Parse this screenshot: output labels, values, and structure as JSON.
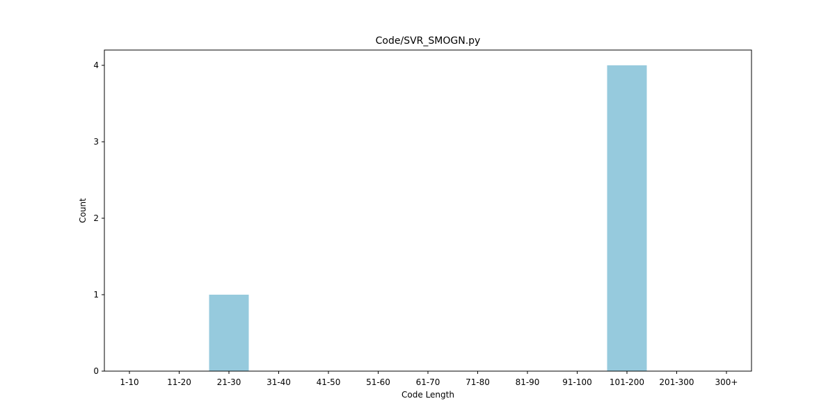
{
  "chart_data": {
    "type": "bar",
    "title": "Code/SVR_SMOGN.py",
    "xlabel": "Code Length",
    "ylabel": "Count",
    "categories": [
      "1-10",
      "11-20",
      "21-30",
      "31-40",
      "41-50",
      "51-60",
      "61-70",
      "71-80",
      "81-90",
      "91-100",
      "101-200",
      "201-300",
      "300+"
    ],
    "values": [
      0,
      0,
      1,
      0,
      0,
      0,
      0,
      0,
      0,
      0,
      4,
      0,
      0
    ],
    "ylim": [
      0,
      4.2
    ],
    "yticks": [
      0,
      1,
      2,
      3,
      4
    ],
    "grid": false,
    "bar_color": "#96cadd"
  }
}
